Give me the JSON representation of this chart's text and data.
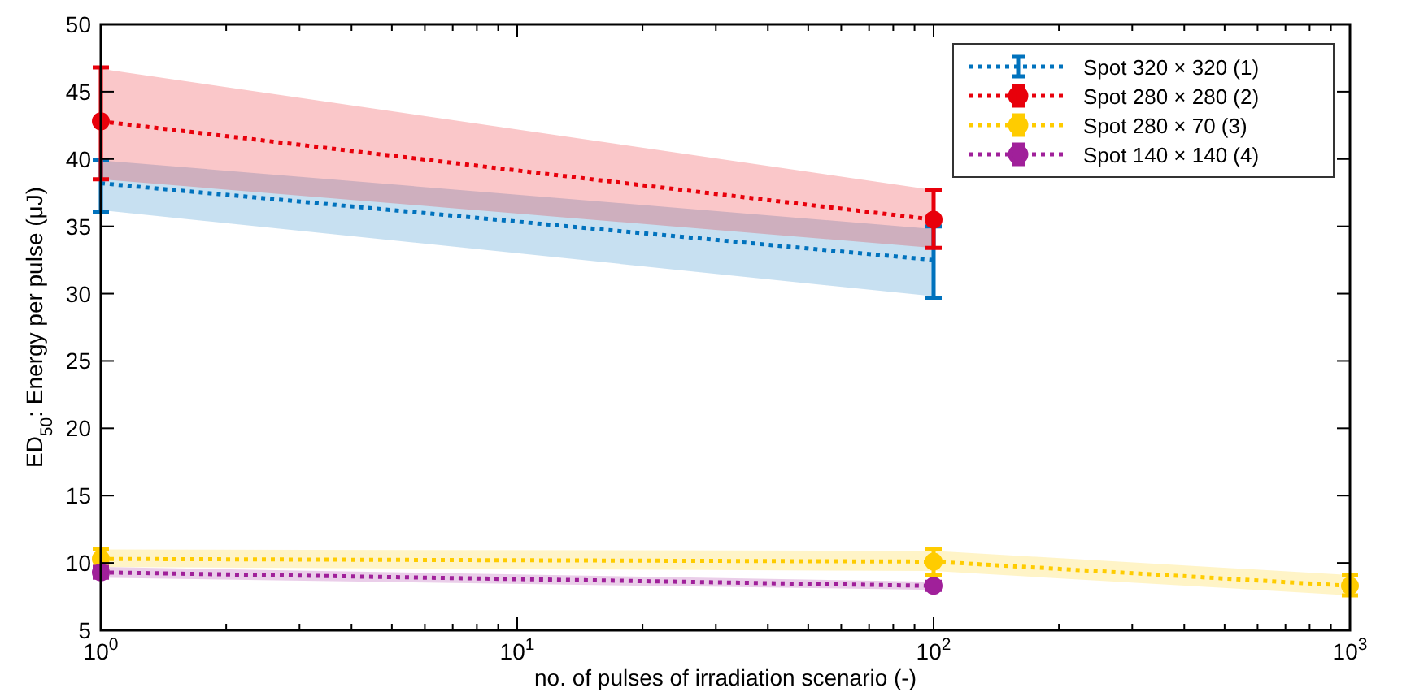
{
  "chart_data": {
    "type": "line",
    "xlabel": "no. of pulses of irradiation scenario (-)",
    "ylabel": "ED$_{50}$: Energy per pulse (μJ)",
    "log": "x",
    "xlim": [
      1,
      1000
    ],
    "xticks": [
      {
        "value": 1,
        "label": "10$^{0}$"
      },
      {
        "value": 10,
        "label": "10$^{1}$"
      },
      {
        "value": 100,
        "label": "10$^{2}$"
      },
      {
        "value": 1000,
        "label": "10$^{3}$"
      }
    ],
    "ylim": [
      5,
      50
    ],
    "yticks": [
      5,
      10,
      15,
      20,
      25,
      30,
      35,
      40,
      45,
      50
    ],
    "grid": false,
    "legend": "top right",
    "line_style": "dotted",
    "series": [
      {
        "name": "Spot 320 × 320 (1)",
        "color": "#0072bd",
        "marker": "none",
        "x": [
          1,
          100
        ],
        "values": [
          38.2,
          32.5
        ],
        "errors": [
          [
            36.1,
            39.9
          ],
          [
            29.7,
            35.0
          ]
        ],
        "lower": [
          36.2,
          29.8
        ],
        "upper": [
          39.9,
          34.8
        ]
      },
      {
        "name": "Spot 280 × 280 (2)",
        "color": "#e8000b",
        "marker": "circle",
        "x": [
          1,
          100
        ],
        "values": [
          42.8,
          35.5
        ],
        "errors": [
          [
            38.5,
            46.8
          ],
          [
            33.4,
            37.7
          ]
        ],
        "lower": [
          38.5,
          33.4
        ],
        "upper": [
          46.7,
          37.7
        ]
      },
      {
        "name": "Spot 280 × 70 (3)",
        "color": "#ffcc00",
        "marker": "circle",
        "x": [
          1,
          100,
          1000
        ],
        "values": [
          10.3,
          10.1,
          8.3
        ],
        "errors": [
          [
            9.7,
            11.0
          ],
          [
            9.1,
            11.0
          ],
          [
            7.6,
            9.1
          ]
        ],
        "lower": [
          9.7,
          9.4,
          7.6
        ],
        "upper": [
          11.0,
          10.9,
          9.1
        ]
      },
      {
        "name": "Spot 140 × 140 (4)",
        "color": "#a0209a",
        "marker": "circle",
        "x": [
          1,
          100
        ],
        "values": [
          9.3,
          8.3
        ],
        "errors": [
          [
            8.9,
            9.7
          ],
          [
            8.0,
            8.6
          ]
        ],
        "lower": [
          8.9,
          8.0
        ],
        "upper": [
          9.7,
          8.6
        ]
      }
    ]
  }
}
